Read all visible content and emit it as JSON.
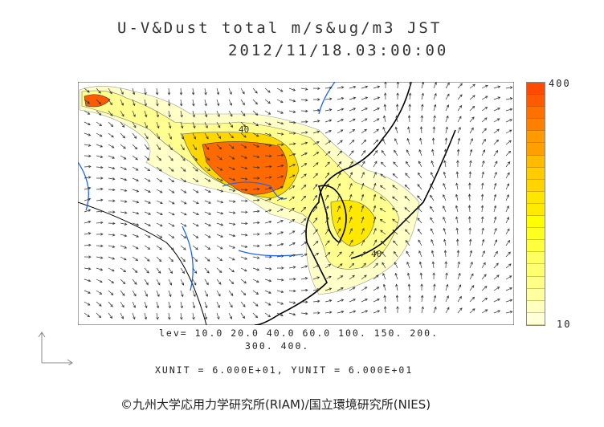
{
  "title": {
    "line1": "U-V&Dust total m/s&ug/m3 JST",
    "line2": "2012/11/18.03:00:00"
  },
  "colorbar": {
    "max_label": "400",
    "min_label": "10",
    "colors": [
      "#ff4a00",
      "#ff5a00",
      "#ff7000",
      "#ff8000",
      "#ff9a00",
      "#ffa000",
      "#ffbb00",
      "#ffcc00",
      "#ffd400",
      "#ffe600",
      "#ffea00",
      "#ffff00",
      "#ffff20",
      "#ffff40",
      "#ffff60",
      "#ffff70",
      "#ffff88",
      "#ffffa0",
      "#ffffc0",
      "#ffffd8"
    ]
  },
  "contour_labels": [
    "40",
    "40"
  ],
  "levels": {
    "line1": "lev= 10.0 20.0 40.0 60.0 100. 150. 200.",
    "line2": "300. 400."
  },
  "units": "XUNIT = 6.000E+01, YUNIT = 6.000E+01",
  "credit": "©九州大学応用力学研究所(RIAM)/国立環境研究所(NIES)"
}
